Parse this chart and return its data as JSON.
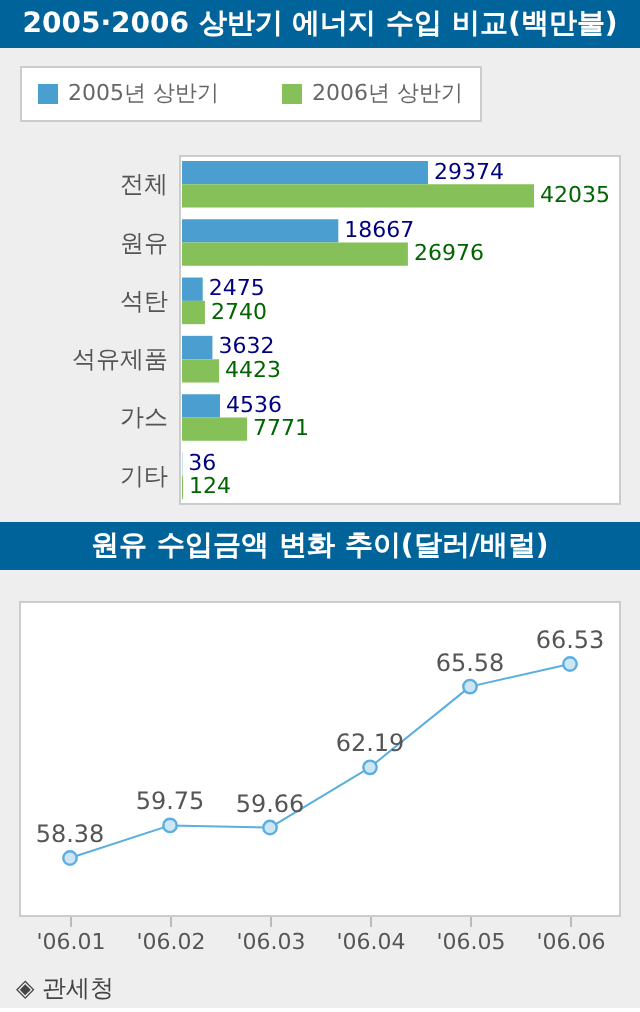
{
  "chart_data": [
    {
      "type": "bar",
      "title": "2005·2006 상반기 에너지 수입 비교(백만불)",
      "orientation": "horizontal",
      "data_labels": true,
      "legend": "top left",
      "grid": false,
      "categories": [
        "전체",
        "원유",
        "석탄",
        "석유제품",
        "가스",
        "기타"
      ],
      "series": [
        {
          "name": "2005년 상반기",
          "color": "#4a9fd0",
          "values": [
            29374,
            18667,
            2475,
            3632,
            4536,
            36
          ]
        },
        {
          "name": "2006년 상반기",
          "color": "#86c058",
          "values": [
            42035,
            26976,
            2740,
            4423,
            7771,
            124
          ]
        }
      ]
    },
    {
      "type": "line",
      "title": "원유 수입금액 변화 추이(달러/배럴)",
      "data_labels": true,
      "marker": "circle",
      "grid": false,
      "tick_labels": "x",
      "categories": [
        "'06.01",
        "'06.02",
        "'06.03",
        "'06.04",
        "'06.05",
        "'06.06"
      ],
      "series": [
        {
          "color": "#5aaee0",
          "values": [
            58.38,
            59.75,
            59.66,
            62.19,
            65.58,
            66.53
          ]
        }
      ],
      "annotations": [
        "◈ 관세청"
      ]
    }
  ]
}
